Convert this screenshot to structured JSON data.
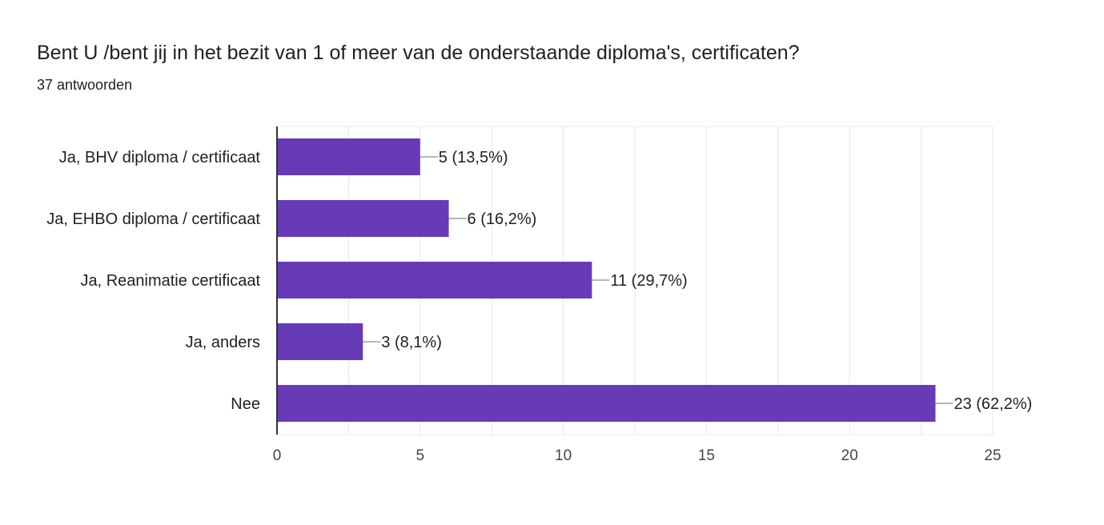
{
  "header": {
    "title": "Bent U /bent jij in het bezit van 1 of meer van de onderstaande diploma's, certificaten?",
    "subtitle": "37 antwoorden"
  },
  "colors": {
    "bar": "#673ab7",
    "grid": "#e8e8e8",
    "axis": "#333333",
    "leader": "#9e9e9e"
  },
  "chart_data": {
    "type": "bar",
    "orientation": "horizontal",
    "categories": [
      "Ja, BHV diploma / certificaat",
      "Ja, EHBO diploma / certificaat",
      "Ja, Reanimatie certificaat",
      "Ja, anders",
      "Nee"
    ],
    "values": [
      5,
      6,
      11,
      3,
      23
    ],
    "data_labels": [
      "5 (13,5%)",
      "6 (16,2%)",
      "11 (29,7%)",
      "3 (8,1%)",
      "23 (62,2%)"
    ],
    "xticks": [
      "0",
      "5",
      "10",
      "15",
      "20",
      "25"
    ],
    "xlim": [
      0,
      25
    ],
    "grid": true
  }
}
